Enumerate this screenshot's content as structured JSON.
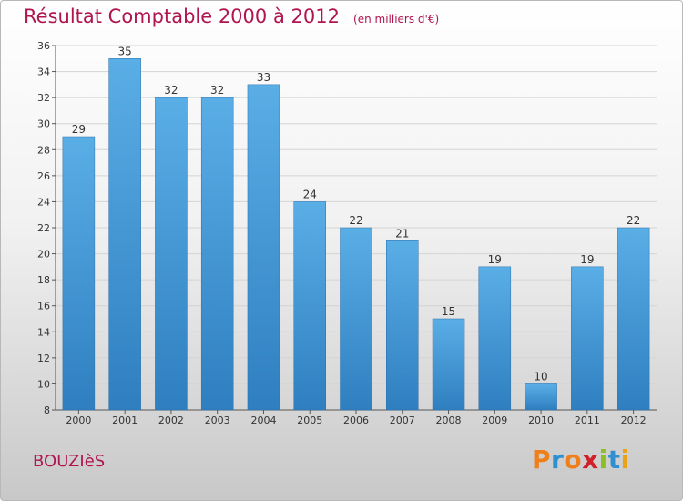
{
  "header": {
    "title": "Résultat Comptable 2000 à 2012",
    "subtitle": "(en milliers d'€)"
  },
  "footer": {
    "place_name": "BOUZIèS",
    "brand_letters": [
      "P",
      "r",
      "o",
      "x",
      "i",
      "t",
      "i"
    ]
  },
  "colors": {
    "title": "#b0154f",
    "bar_top": "#5aaee6",
    "bar_bottom": "#2f7fc0",
    "brand_letters": [
      "#ef7f1a",
      "#2f8fd0",
      "#ef7f1a",
      "#d0202a",
      "#8cbf26",
      "#2f8fd0",
      "#e8a317"
    ]
  },
  "chart_data": {
    "type": "bar",
    "categories": [
      "2000",
      "2001",
      "2002",
      "2003",
      "2004",
      "2005",
      "2006",
      "2007",
      "2008",
      "2009",
      "2010",
      "2011",
      "2012"
    ],
    "values": [
      29,
      35,
      32,
      32,
      33,
      24,
      22,
      21,
      15,
      19,
      10,
      19,
      22
    ],
    "ylim": [
      8,
      36
    ],
    "yticks": [
      8,
      10,
      12,
      14,
      16,
      18,
      20,
      22,
      24,
      26,
      28,
      30,
      32,
      34,
      36
    ],
    "grid": true,
    "data_labels": true
  }
}
